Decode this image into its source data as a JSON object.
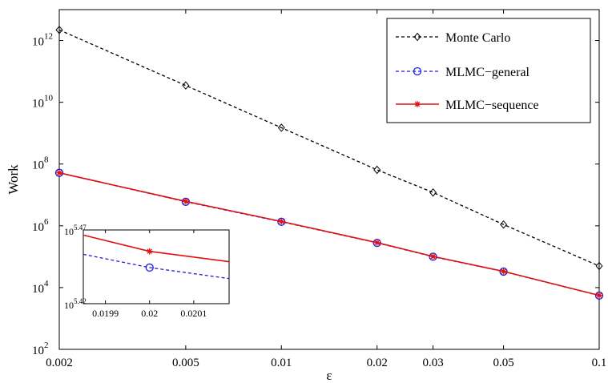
{
  "chart_data": {
    "type": "line",
    "xlabel": "ε",
    "ylabel": "Work",
    "x_scale": "log",
    "y_scale": "log",
    "xlim": [
      0.002,
      0.1
    ],
    "ylim": [
      100,
      10000000000000.0
    ],
    "grid": false,
    "legend_position": "top-right",
    "x_ticks": [
      {
        "value": 0.002,
        "label": "0.002"
      },
      {
        "value": 0.005,
        "label": "0.005"
      },
      {
        "value": 0.01,
        "label": "0.01"
      },
      {
        "value": 0.02,
        "label": "0.02"
      },
      {
        "value": 0.03,
        "label": "0.03"
      },
      {
        "value": 0.05,
        "label": "0.05"
      },
      {
        "value": 0.1,
        "label": "0.1"
      }
    ],
    "y_ticks": [
      {
        "exp": 2,
        "base": "10",
        "sup": "2"
      },
      {
        "exp": 4,
        "base": "10",
        "sup": "4"
      },
      {
        "exp": 6,
        "base": "10",
        "sup": "6"
      },
      {
        "exp": 8,
        "base": "10",
        "sup": "8"
      },
      {
        "exp": 10,
        "base": "10",
        "sup": "10"
      },
      {
        "exp": 12,
        "base": "10",
        "sup": "12"
      }
    ],
    "x": [
      0.002,
      0.005,
      0.01,
      0.02,
      0.03,
      0.05,
      0.1
    ],
    "series": [
      {
        "name": "Monte Carlo",
        "color": "#000000",
        "dash": "dashed",
        "marker": "diamond",
        "values": [
          2200000000000.0,
          35000000000.0,
          1500000000.0,
          65000000.0,
          12000000.0,
          1100000.0,
          50000.0
        ]
      },
      {
        "name": "MLMC−general",
        "color": "#1f1fd6",
        "dash": "dashed",
        "marker": "circle",
        "values": [
          52000000.0,
          6000000.0,
          1350000.0,
          280000.0,
          100000.0,
          33000.0,
          5500.0
        ]
      },
      {
        "name": "MLMC−sequence",
        "color": "#e01010",
        "dash": "solid",
        "marker": "asterisk",
        "values": [
          52000000.0,
          6200000.0,
          1380000.0,
          285000.0,
          102000.0,
          33500.0,
          5600.0
        ]
      }
    ],
    "inset": {
      "xlim": [
        0.01985,
        0.02018
      ],
      "ylim_exp": [
        5.42,
        5.47
      ],
      "x_ticks": [
        {
          "value": 0.0199,
          "label": "0.0199"
        },
        {
          "value": 0.02,
          "label": "0.02"
        },
        {
          "value": 0.0201,
          "label": "0.0201"
        }
      ],
      "y_ticks": [
        {
          "exp": 5.42,
          "base": "10",
          "sup": "5.42"
        },
        {
          "exp": 5.47,
          "base": "10",
          "sup": "5.47"
        }
      ],
      "series": [
        {
          "ref": "MLMC−general",
          "x": [
            0.01985,
            0.02,
            0.02018
          ],
          "y_exp": [
            5.4535,
            5.4445,
            5.437
          ],
          "marker_index": 1
        },
        {
          "ref": "MLMC−sequence",
          "x": [
            0.01985,
            0.02,
            0.02018
          ],
          "y_exp": [
            5.4665,
            5.4555,
            5.4485
          ],
          "marker_index": 1
        }
      ]
    }
  }
}
